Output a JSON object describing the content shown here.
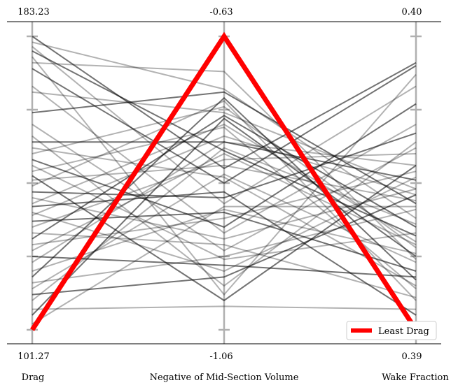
{
  "chart_data": {
    "type": "line",
    "plot_style": "parallel-coordinates",
    "axes": [
      {
        "name": "Drag",
        "max_label": "183.23",
        "min_label": "101.27"
      },
      {
        "name": "Negative of Mid-Section Volume",
        "max_label": "-0.63",
        "min_label": "-1.06"
      },
      {
        "name": "Wake Fraction",
        "max_label": "0.40",
        "min_label": "0.39"
      }
    ],
    "axis_ticks_normalized": [
      0,
      0.25,
      0.5,
      0.75,
      1
    ],
    "normalized_scale": [
      0,
      1
    ],
    "highlight": {
      "name": "Least Drag",
      "values_normalized": [
        0.0,
        1.0,
        0.0
      ],
      "color": "#ff0000"
    },
    "background_series_color": "#000000",
    "background_series_values_normalized": [
      [
        1.0,
        0.55,
        0.91
      ],
      [
        0.98,
        0.82,
        0.38
      ],
      [
        0.965,
        0.43,
        0.83
      ],
      [
        0.95,
        0.61,
        0.32
      ],
      [
        0.93,
        0.12,
        0.87
      ],
      [
        0.91,
        0.88,
        0.24
      ],
      [
        0.89,
        0.5,
        0.9
      ],
      [
        0.83,
        0.33,
        0.7
      ],
      [
        0.81,
        0.74,
        0.48
      ],
      [
        0.74,
        0.81,
        0.43
      ],
      [
        0.7,
        0.27,
        0.62
      ],
      [
        0.66,
        0.15,
        0.64
      ],
      [
        0.64,
        0.64,
        0.51
      ],
      [
        0.62,
        0.52,
        0.15
      ],
      [
        0.6,
        0.76,
        0.28
      ],
      [
        0.58,
        0.35,
        0.77
      ],
      [
        0.56,
        0.24,
        0.33
      ],
      [
        0.54,
        0.69,
        0.14
      ],
      [
        0.525,
        0.1,
        0.56
      ],
      [
        0.51,
        0.56,
        0.44
      ],
      [
        0.49,
        0.78,
        0.1
      ],
      [
        0.47,
        0.45,
        0.67
      ],
      [
        0.45,
        0.31,
        0.48
      ],
      [
        0.43,
        0.7,
        0.3
      ],
      [
        0.42,
        0.47,
        0.05
      ],
      [
        0.4,
        0.2,
        0.52
      ],
      [
        0.39,
        0.66,
        0.46
      ],
      [
        0.37,
        0.4,
        0.2
      ],
      [
        0.35,
        0.58,
        0.6
      ],
      [
        0.33,
        0.29,
        0.11
      ],
      [
        0.31,
        0.73,
        0.35
      ],
      [
        0.29,
        0.38,
        0.54
      ],
      [
        0.27,
        0.6,
        0.29
      ],
      [
        0.25,
        0.22,
        0.18
      ],
      [
        0.23,
        0.64,
        0.56
      ],
      [
        0.2,
        0.41,
        0.26
      ],
      [
        0.18,
        0.79,
        0.17
      ],
      [
        0.16,
        0.25,
        0.41
      ],
      [
        0.14,
        0.53,
        0.23
      ],
      [
        0.12,
        0.18,
        0.46
      ],
      [
        0.1,
        0.62,
        0.36
      ],
      [
        0.07,
        0.08,
        0.07
      ],
      [
        0.05,
        0.72,
        0.25
      ],
      [
        0.02,
        0.42,
        0.42
      ]
    ],
    "legend": {
      "entries": [
        "Least Drag"
      ],
      "placement": "bottom-right"
    },
    "grid": false
  }
}
